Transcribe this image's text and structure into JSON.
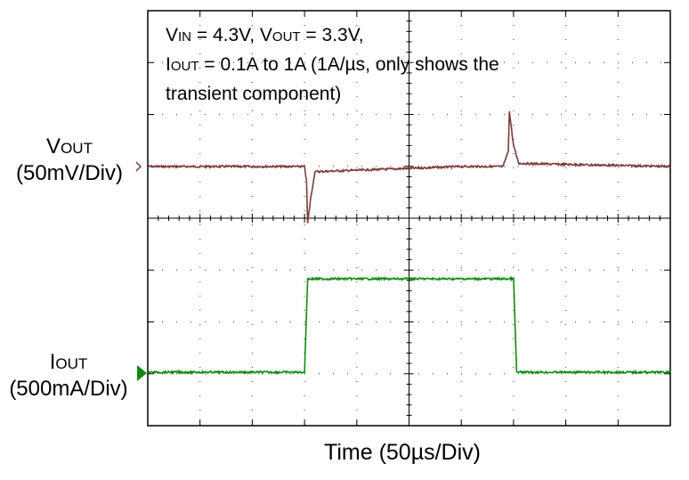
{
  "conditions": {
    "line1": {
      "v_in_label": "V",
      "v_in_sub": "IN",
      "v_in_value": " = 4.3V, ",
      "v_out_label": "V",
      "v_out_sub": "OUT",
      "v_out_value": " = 3.3V,"
    },
    "line2": {
      "i_out_label": "I",
      "i_out_sub": "OUT",
      "rest": " = 0.1A to 1A (1A/µs, only shows the"
    },
    "line3": "transient component)"
  },
  "channels": {
    "vout": {
      "name": "V",
      "sub": "OUT",
      "scale": "(50mV/Div)",
      "color": "#7b3b3b"
    },
    "iout": {
      "name": "I",
      "sub": "OUT",
      "scale": "(500mA/Div)",
      "color": "#118a11"
    }
  },
  "chart_data": {
    "type": "line",
    "xlabel": "Time (50µs/Div)",
    "x_divisions": 10,
    "y_divisions": 8,
    "x_unit": "µs",
    "grid": true,
    "series": [
      {
        "name": "VOUT",
        "unit": "mV",
        "scale_per_div": 50,
        "x": [
          0,
          150,
          152,
          153,
          156,
          160,
          300,
          340,
          345,
          346,
          350,
          355,
          500
        ],
        "values": [
          0,
          0,
          -15,
          -55,
          -30,
          -5,
          0,
          0,
          15,
          53,
          20,
          3,
          0
        ]
      },
      {
        "name": "IOUT",
        "unit": "A",
        "scale_per_div": 0.5,
        "x": [
          0,
          150,
          153,
          300,
          350,
          353,
          500
        ],
        "values": [
          0.1,
          0.1,
          1.0,
          1.0,
          1.0,
          0.1,
          0.1
        ]
      }
    ]
  }
}
